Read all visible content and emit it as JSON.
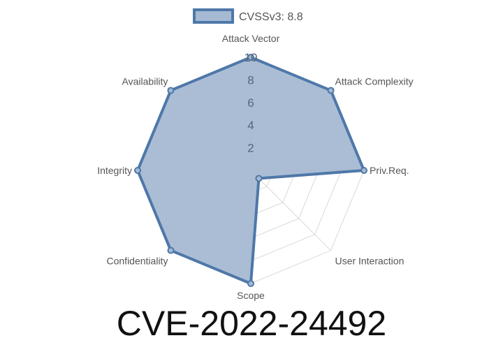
{
  "chart_data": {
    "type": "radar",
    "title": "CVE-2022-24492",
    "axes": [
      "Attack Vector",
      "Attack Complexity",
      "Priv.Req.",
      "User Interaction",
      "Scope",
      "Confidentiality",
      "Integrity",
      "Availability"
    ],
    "series": [
      {
        "name": "CVSSv3: 8.8",
        "values": [
          10,
          10,
          10,
          1,
          10,
          10,
          10,
          10
        ]
      }
    ],
    "rlim": [
      0,
      10
    ],
    "ticks": [
      "2",
      "4",
      "6",
      "8",
      "10"
    ],
    "grid": true,
    "legend": "top",
    "colors": {
      "line": "#4e78a8",
      "fill": "#a5b9d3",
      "grid": "#d9d9d9",
      "tick": "#5a6478",
      "label": "#555555"
    }
  }
}
